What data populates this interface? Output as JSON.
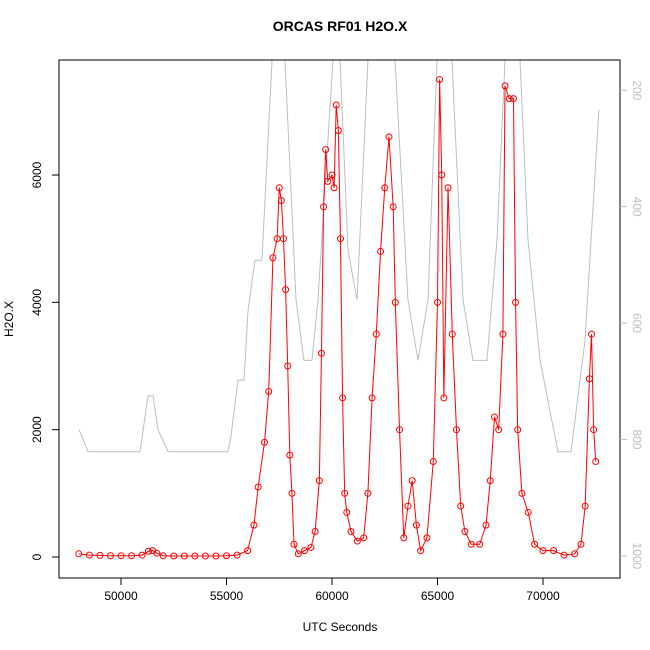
{
  "chart_data": {
    "type": "line",
    "title": "ORCAS RF01 H2O.X",
    "x_label": "UTC Seconds",
    "y_label": "H2O.X",
    "xlim": [
      47060,
      73650
    ],
    "xticks": [
      50000,
      55000,
      60000,
      65000,
      70000
    ],
    "ylim": [
      -330,
      7807
    ],
    "yticks": [
      0,
      2000,
      4000,
      6000
    ],
    "y2lim": [
      1038,
      148
    ],
    "y2ticks": [
      200,
      400,
      600,
      800,
      1000
    ],
    "series": [
      {
        "color": "#ff0000",
        "markers": true,
        "x": [
          48000,
          48500,
          49000,
          49500,
          50000,
          50500,
          51000,
          51300,
          51500,
          51700,
          52000,
          52500,
          53000,
          53500,
          54000,
          54500,
          55000,
          55500,
          56000,
          56300,
          56500,
          56800,
          57000,
          57200,
          57400,
          57500,
          57600,
          57700,
          57800,
          57900,
          58000,
          58100,
          58200,
          58400,
          58700,
          59000,
          59200,
          59400,
          59500,
          59600,
          59700,
          59800,
          60000,
          60100,
          60200,
          60300,
          60400,
          60500,
          60600,
          60700,
          60900,
          61200,
          61500,
          61700,
          61900,
          62100,
          62300,
          62500,
          62700,
          62900,
          63000,
          63200,
          63400,
          63600,
          63800,
          64000,
          64200,
          64500,
          64800,
          65000,
          65100,
          65200,
          65300,
          65500,
          65700,
          65900,
          66100,
          66300,
          66600,
          67000,
          67300,
          67500,
          67700,
          67900,
          68100,
          68200,
          68400,
          68600,
          68700,
          68800,
          69000,
          69300,
          69600,
          70000,
          70500,
          71000,
          71500,
          71800,
          72000,
          72200,
          72300,
          72400,
          72500
        ],
        "values": [
          50,
          30,
          25,
          20,
          20,
          20,
          30,
          90,
          100,
          60,
          20,
          15,
          15,
          15,
          15,
          15,
          20,
          30,
          100,
          500,
          1100,
          1800,
          2600,
          4700,
          5000,
          5800,
          5600,
          5000,
          4200,
          3000,
          1600,
          1000,
          200,
          50,
          100,
          150,
          400,
          1200,
          3200,
          5500,
          6400,
          5900,
          6000,
          5800,
          7100,
          6700,
          5000,
          2500,
          1000,
          700,
          400,
          250,
          300,
          1000,
          2500,
          3500,
          4800,
          5800,
          6600,
          5500,
          4000,
          2000,
          300,
          800,
          1200,
          500,
          100,
          300,
          1500,
          4000,
          7500,
          6000,
          2500,
          5800,
          3500,
          2000,
          800,
          400,
          200,
          200,
          500,
          1200,
          2200,
          2000,
          3500,
          7400,
          7200,
          7200,
          4000,
          2000,
          1000,
          700,
          200,
          100,
          100,
          30,
          50,
          200,
          800,
          2800,
          3500,
          2000,
          1500
        ]
      },
      {
        "color": "#bebebe",
        "axis": "y2",
        "x": [
          48010,
          48436,
          50900,
          51280,
          51516,
          51753,
          52228,
          55070,
          55213,
          55545,
          55830,
          56020,
          56350,
          56680,
          57160,
          57770,
          58295,
          58670,
          59050,
          59335,
          60045,
          60380,
          60760,
          61185,
          61705,
          62985,
          63600,
          64075,
          64550,
          64975,
          65685,
          66210,
          66680,
          67345,
          67820,
          68200,
          68910,
          69290,
          69860,
          70710,
          71330,
          71990,
          72650
        ],
        "values": [
          783,
          821,
          821,
          725,
          725,
          783,
          821,
          821,
          794,
          698,
          698,
          578,
          492,
          492,
          148,
          148,
          560,
          664,
          664,
          560,
          148,
          148,
          475,
          560,
          148,
          148,
          560,
          664,
          560,
          148,
          148,
          560,
          664,
          664,
          457,
          148,
          148,
          457,
          664,
          821,
          821,
          630,
          234
        ]
      }
    ]
  }
}
